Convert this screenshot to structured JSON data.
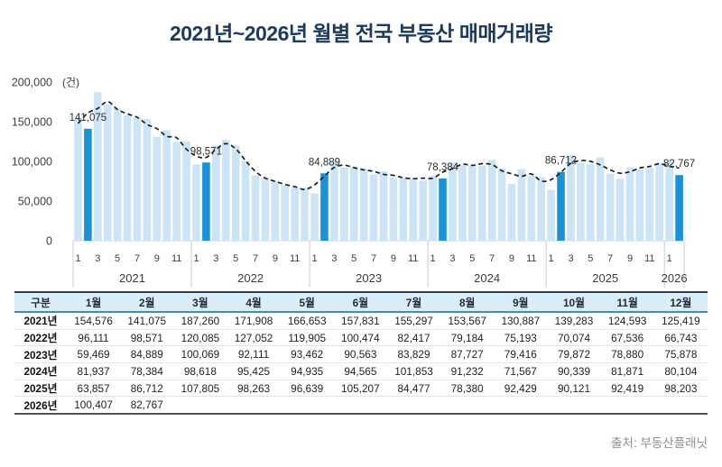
{
  "title": "2021년~2026년 월별 전국 부동산 매매거래량",
  "source": "출처: 부동산플래닛",
  "chart_data": {
    "type": "bar",
    "unit_label": "(건)",
    "title": "2021년~2026년 월별 전국 부동산 매매거래량",
    "ylim": [
      0,
      200000
    ],
    "y_ticks": [
      "200,000",
      "150,000",
      "100,000",
      "50,000",
      "0"
    ],
    "x_month_ticks": [
      "1",
      "3",
      "5",
      "7",
      "9",
      "11"
    ],
    "legend": "none",
    "grid": "off",
    "highlighted_month_index_in_year": 1,
    "highlight_labels": [
      "141,075",
      "98,571",
      "84,889",
      "78,384",
      "86,712",
      "82,767"
    ],
    "trend_line": {
      "type": "3-month-moving-average",
      "style": "dashed",
      "color": "#1f1f1f"
    },
    "colors": {
      "bar": "#cbe5f6",
      "highlight_bar": "#1992d9"
    },
    "series": [
      {
        "year": "2021",
        "values": [
          154576,
          141075,
          187260,
          171908,
          166653,
          157831,
          155297,
          153567,
          130887,
          139283,
          124593,
          125419
        ]
      },
      {
        "year": "2022",
        "values": [
          96111,
          98571,
          120085,
          127052,
          119905,
          100474,
          82417,
          79184,
          75193,
          70074,
          67536,
          66743
        ]
      },
      {
        "year": "2023",
        "values": [
          59469,
          84889,
          100069,
          92111,
          93462,
          90563,
          83829,
          87727,
          79416,
          79872,
          78880,
          75878
        ]
      },
      {
        "year": "2024",
        "values": [
          81937,
          78384,
          98618,
          95425,
          94935,
          94565,
          101853,
          91232,
          71567,
          90339,
          81871,
          80104
        ]
      },
      {
        "year": "2025",
        "values": [
          63857,
          86712,
          107805,
          98263,
          96639,
          105207,
          84477,
          78380,
          92429,
          90121,
          92419,
          98203
        ]
      },
      {
        "year": "2026",
        "values": [
          100407,
          82767
        ]
      }
    ]
  },
  "table": {
    "corner_header": "구분",
    "column_headers": [
      "1월",
      "2월",
      "3월",
      "4월",
      "5월",
      "6월",
      "7월",
      "8월",
      "9월",
      "10월",
      "11월",
      "12월"
    ],
    "rows": [
      {
        "label": "2021년",
        "values": [
          "154,576",
          "141,075",
          "187,260",
          "171,908",
          "166,653",
          "157,831",
          "155,297",
          "153,567",
          "130,887",
          "139,283",
          "124,593",
          "125,419"
        ]
      },
      {
        "label": "2022년",
        "values": [
          "96,111",
          "98,571",
          "120,085",
          "127,052",
          "119,905",
          "100,474",
          "82,417",
          "79,184",
          "75,193",
          "70,074",
          "67,536",
          "66,743"
        ]
      },
      {
        "label": "2023년",
        "values": [
          "59,469",
          "84,889",
          "100,069",
          "92,111",
          "93,462",
          "90,563",
          "83,829",
          "87,727",
          "79,416",
          "79,872",
          "78,880",
          "75,878"
        ]
      },
      {
        "label": "2024년",
        "values": [
          "81,937",
          "78,384",
          "98,618",
          "95,425",
          "94,935",
          "94,565",
          "101,853",
          "91,232",
          "71,567",
          "90,339",
          "81,871",
          "80,104"
        ]
      },
      {
        "label": "2025년",
        "values": [
          "63,857",
          "86,712",
          "107,805",
          "98,263",
          "96,639",
          "105,207",
          "84,477",
          "78,380",
          "92,429",
          "90,121",
          "92,419",
          "98,203"
        ]
      },
      {
        "label": "2026년",
        "values": [
          "100,407",
          "82,767"
        ]
      }
    ]
  }
}
